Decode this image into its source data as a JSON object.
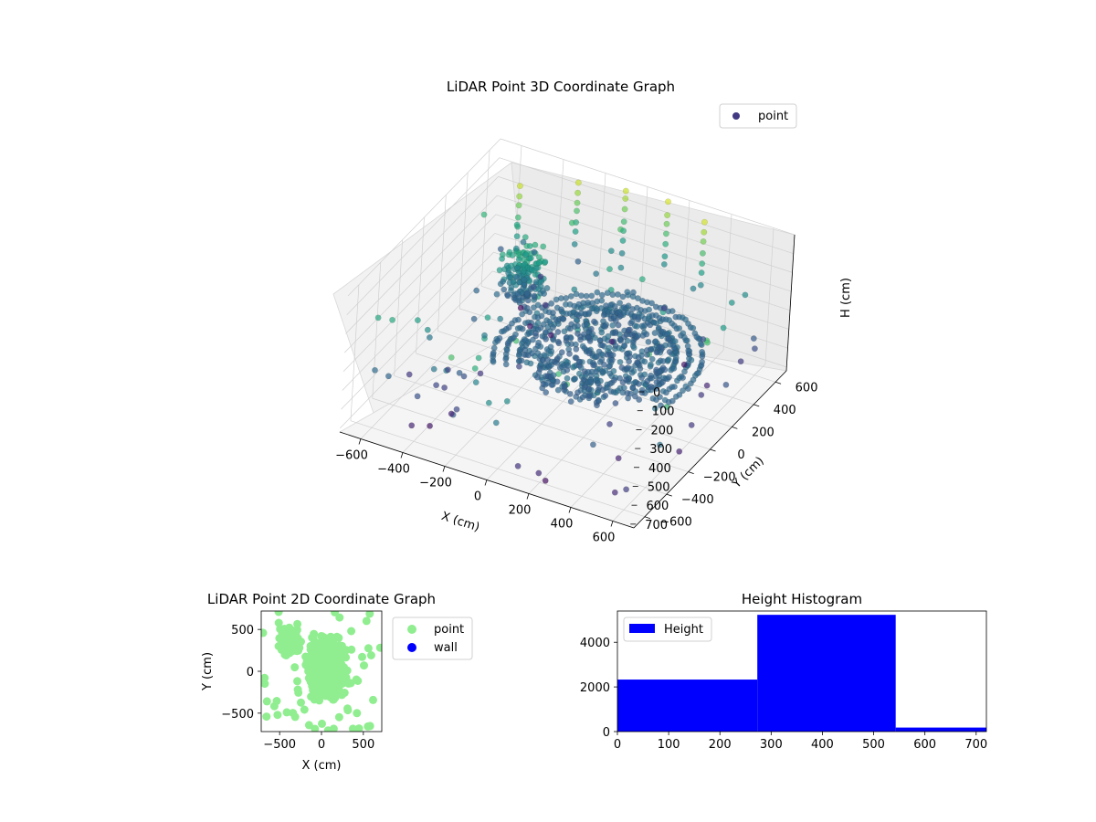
{
  "chart_data": [
    {
      "type": "scatter",
      "projection": "3d",
      "title": "LiDAR Point 3D Coordinate Graph",
      "xlabel": "X (cm)",
      "ylabel": "Y (cm)",
      "zlabel": "H (cm)",
      "xlim": [
        -700,
        700
      ],
      "ylim": [
        -700,
        700
      ],
      "zlim": [
        0,
        720
      ],
      "z_inverted": true,
      "xticks": [
        -600,
        -400,
        -200,
        0,
        200,
        400,
        600
      ],
      "yticks": [
        -600,
        -400,
        -200,
        0,
        200,
        400,
        600
      ],
      "zticks": [
        0,
        100,
        200,
        300,
        400,
        500,
        600,
        700
      ],
      "colormap": "viridis",
      "legend": {
        "placement": "top-right",
        "entries": [
          "point"
        ]
      },
      "grid": true
    },
    {
      "type": "scatter",
      "title": "LiDAR Point 2D Coordinate Graph",
      "xlabel": "X (cm)",
      "ylabel": "Y (cm)",
      "xlim": [
        -720,
        720
      ],
      "ylim": [
        -720,
        720
      ],
      "xticks": [
        -500,
        0,
        500
      ],
      "yticks": [
        -500,
        0,
        500
      ],
      "legend": {
        "placement": "outside-right",
        "entries": [
          "point",
          "wall"
        ]
      },
      "series": [
        {
          "name": "point",
          "color": "#90ee90"
        },
        {
          "name": "wall",
          "color": "#0000ff",
          "values": []
        }
      ]
    },
    {
      "type": "bar",
      "title": "Height Histogram",
      "xlim": [
        0,
        720
      ],
      "ylim": [
        0,
        5400
      ],
      "xticks": [
        0,
        100,
        200,
        300,
        400,
        500,
        600,
        700
      ],
      "yticks": [
        0,
        2000,
        4000
      ],
      "legend": {
        "placement": "top-left",
        "entries": [
          "Height"
        ]
      },
      "bins": [
        {
          "start": 0,
          "end": 273,
          "count": 2330
        },
        {
          "start": 273,
          "end": 543,
          "count": 5230
        },
        {
          "start": 543,
          "end": 720,
          "count": 180
        }
      ],
      "series": [
        {
          "name": "Height",
          "color": "#0000ff"
        }
      ]
    }
  ]
}
